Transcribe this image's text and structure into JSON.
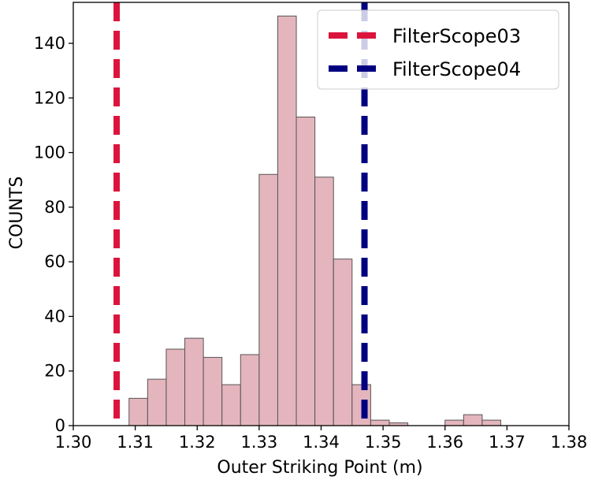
{
  "chart_data": {
    "type": "histogram",
    "xlabel": "Outer Striking Point (m)",
    "ylabel": "COUNTS",
    "xlim": [
      1.3,
      1.38
    ],
    "ylim": [
      0,
      155
    ],
    "x_ticks": [
      "1.30",
      "1.31",
      "1.32",
      "1.33",
      "1.34",
      "1.35",
      "1.36",
      "1.37",
      "1.38"
    ],
    "y_ticks": [
      "0",
      "20",
      "40",
      "60",
      "80",
      "100",
      "120",
      "140"
    ],
    "bar_color": "#e4b5bd",
    "bar_edge_color": "#555555",
    "bins": [
      {
        "x0": 1.309,
        "x1": 1.312,
        "count": 10
      },
      {
        "x0": 1.312,
        "x1": 1.315,
        "count": 17
      },
      {
        "x0": 1.315,
        "x1": 1.318,
        "count": 28
      },
      {
        "x0": 1.318,
        "x1": 1.321,
        "count": 32
      },
      {
        "x0": 1.321,
        "x1": 1.324,
        "count": 25
      },
      {
        "x0": 1.324,
        "x1": 1.327,
        "count": 15
      },
      {
        "x0": 1.327,
        "x1": 1.33,
        "count": 26
      },
      {
        "x0": 1.33,
        "x1": 1.333,
        "count": 92
      },
      {
        "x0": 1.333,
        "x1": 1.336,
        "count": 150
      },
      {
        "x0": 1.336,
        "x1": 1.339,
        "count": 113
      },
      {
        "x0": 1.339,
        "x1": 1.342,
        "count": 91
      },
      {
        "x0": 1.342,
        "x1": 1.345,
        "count": 61
      },
      {
        "x0": 1.345,
        "x1": 1.348,
        "count": 15
      },
      {
        "x0": 1.348,
        "x1": 1.351,
        "count": 2
      },
      {
        "x0": 1.351,
        "x1": 1.354,
        "count": 1
      },
      {
        "x0": 1.354,
        "x1": 1.357,
        "count": 0
      },
      {
        "x0": 1.357,
        "x1": 1.36,
        "count": 0
      },
      {
        "x0": 1.36,
        "x1": 1.363,
        "count": 2
      },
      {
        "x0": 1.363,
        "x1": 1.366,
        "count": 4
      },
      {
        "x0": 1.366,
        "x1": 1.369,
        "count": 2
      }
    ],
    "vlines": [
      {
        "name": "FilterScope03",
        "x": 1.307,
        "color": "#dc143c",
        "style": "dashed"
      },
      {
        "name": "FilterScope04",
        "x": 1.347,
        "color": "#000080",
        "style": "dashed"
      }
    ],
    "legend_position": "top-right",
    "grid": false
  }
}
